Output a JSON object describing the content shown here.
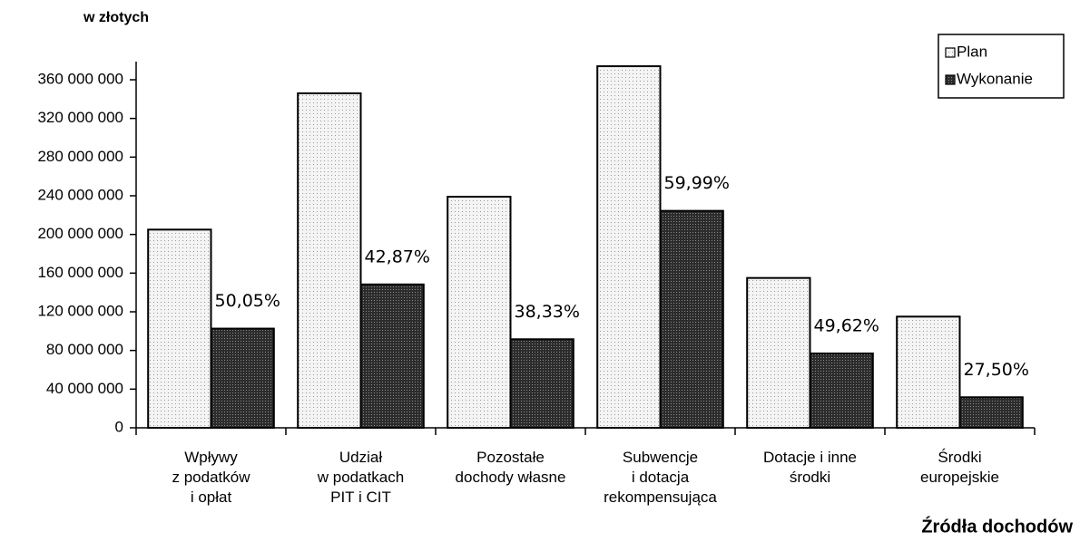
{
  "chart_data": {
    "type": "bar",
    "y_label": "w złotych",
    "x_label": "Źródła dochodów",
    "categories": [
      "Wpływy\nz podatków\ni opłat",
      "Udział\nw podatkach\nPIT i CIT",
      "Pozostałe\ndochody własne",
      "Subwencje\ni dotacja\nrekompensująca",
      "Dotacje i inne\nśrodki",
      "Środki\neuropejskie"
    ],
    "series": [
      {
        "name": "Plan",
        "color": "#f2f2f2",
        "values": [
          205000000,
          346000000,
          239000000,
          374000000,
          155000000,
          115000000
        ]
      },
      {
        "name": "Wykonanie",
        "color": "#3a3a3a",
        "values": [
          102600000,
          148300000,
          91600000,
          224400000,
          76900000,
          31600000
        ]
      }
    ],
    "annotations": [
      "50,05%",
      "42,87%",
      "38,33%",
      "59,99%",
      "49,62%",
      "27,50%"
    ],
    "ylim": [
      0,
      360000000
    ],
    "yticks": [
      0,
      {
        "value": 40000000,
        "label": "40 000 000"
      },
      {
        "value": 80000000,
        "label": "80 000 000"
      },
      {
        "value": 120000000,
        "label": "120 000 000"
      },
      {
        "value": 160000000,
        "label": "160 000 000"
      },
      {
        "value": 200000000,
        "label": "200 000 000"
      },
      {
        "value": 240000000,
        "label": "240 000 000"
      },
      {
        "value": 280000000,
        "label": "280 000 000"
      },
      {
        "value": 320000000,
        "label": "320 000 000"
      },
      {
        "value": 360000000,
        "label": "360 000 000"
      }
    ],
    "legend": "top-right",
    "grid": false
  }
}
